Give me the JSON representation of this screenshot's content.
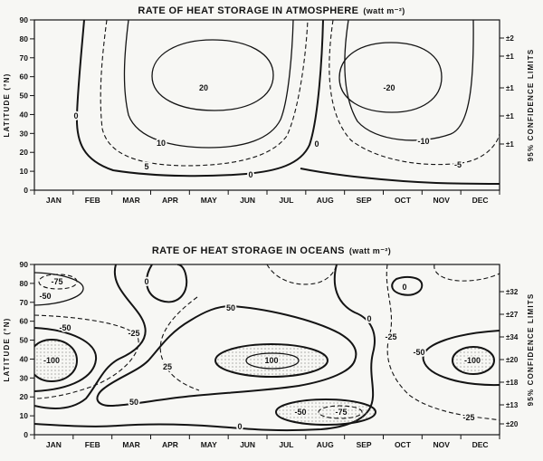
{
  "chart_data": [
    {
      "type": "contour",
      "title": "RATE OF HEAT STORAGE IN ATMOSPHERE",
      "units": "(watt m⁻²)",
      "xlabel": "",
      "ylabel": "LATITUDE (°N)",
      "x_categories": [
        "JAN",
        "FEB",
        "MAR",
        "APR",
        "MAY",
        "JUN",
        "JUL",
        "AUG",
        "SEP",
        "OCT",
        "NOV",
        "DEC"
      ],
      "y_ticks": [
        "90",
        "80",
        "70",
        "60",
        "50",
        "40",
        "30",
        "20",
        "10",
        "0"
      ],
      "y_range": [
        0,
        90
      ],
      "contour_levels": [
        -20,
        -10,
        -5,
        0,
        5,
        10,
        20
      ],
      "dashed_levels": [
        -5,
        5
      ],
      "contour_labels": [
        "0",
        "20",
        "10",
        "5",
        "0",
        "0",
        "-20",
        "-10",
        "-5"
      ],
      "right_axis": {
        "label": "95% CONFIDENCE LIMITS",
        "values": [
          "±2",
          "±1",
          "±1",
          "±1",
          "±1"
        ]
      }
    },
    {
      "type": "contour",
      "title": "RATE OF HEAT STORAGE IN OCEANS",
      "units": "(watt m⁻²)",
      "xlabel": "",
      "ylabel": "LATITUDE (°N)",
      "x_categories": [
        "JAN",
        "FEB",
        "MAR",
        "APR",
        "MAY",
        "JUN",
        "JUL",
        "AUG",
        "SEP",
        "OCT",
        "NOV",
        "DEC"
      ],
      "y_ticks": [
        "90",
        "80",
        "70",
        "60",
        "50",
        "40",
        "30",
        "20",
        "10",
        "0"
      ],
      "y_range": [
        0,
        90
      ],
      "contour_levels": [
        -100,
        -75,
        -50,
        -25,
        0,
        25,
        50,
        100
      ],
      "dashed_levels": [
        -75,
        -25,
        25
      ],
      "contour_labels": [
        "-75",
        "-50",
        "0",
        "-25",
        "-50",
        "-100",
        "25",
        "50",
        "100",
        "50",
        "0",
        "0",
        "-50",
        "-75",
        "0",
        "-25",
        "-50",
        "-100",
        "-25"
      ],
      "right_axis": {
        "label": "95% CONFIDENCE LIMITS",
        "values": [
          "±32",
          "±27",
          "±34",
          "±20",
          "±18",
          "±13",
          "±20"
        ]
      }
    }
  ]
}
